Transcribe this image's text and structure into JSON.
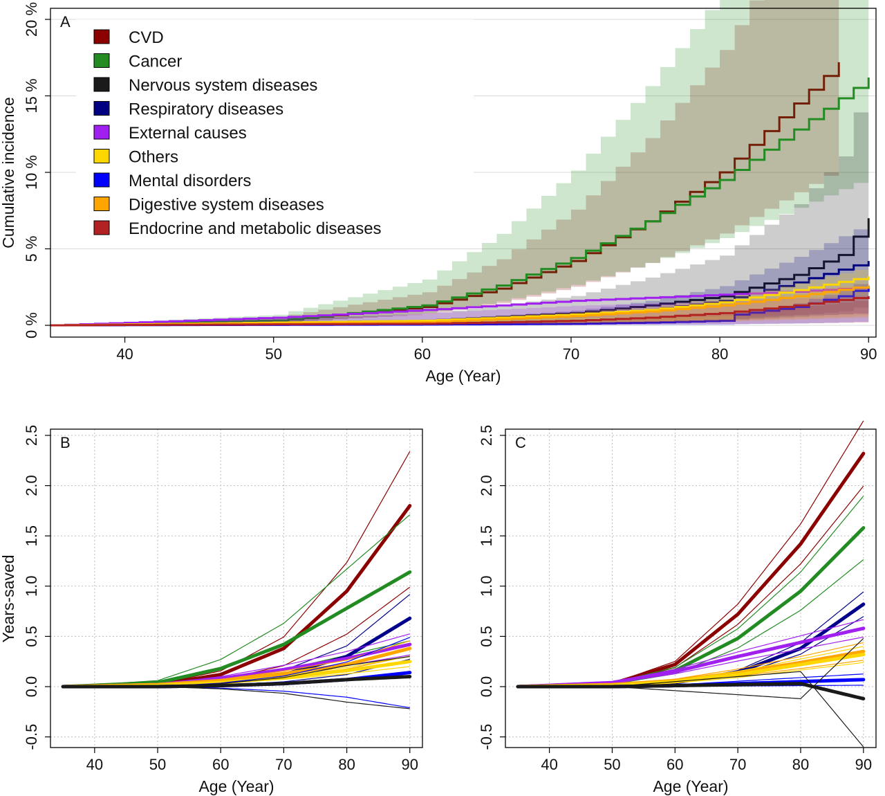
{
  "chart_data": [
    {
      "panel": "A",
      "type": "line",
      "xlabel": "Age (Year)",
      "ylabel": "Cumulative incidence",
      "xlim": [
        35,
        90
      ],
      "ylim": [
        0,
        20
      ],
      "x_ticks": [
        "40",
        "50",
        "60",
        "70",
        "80",
        "90"
      ],
      "y_ticks": [
        "0 %",
        "5 %",
        "10 %",
        "15 %",
        "20 %"
      ],
      "legend_position": "top-left",
      "grid": "horizontal",
      "series": [
        {
          "name": "CVD",
          "color": "#8B0000",
          "x": [
            35,
            50,
            60,
            65,
            70,
            75,
            80,
            85,
            88
          ],
          "y": [
            0,
            0.3,
            1.2,
            2.4,
            4.2,
            6.8,
            10.0,
            14.5,
            17.2
          ],
          "ci": [
            0.6,
            1.8
          ]
        },
        {
          "name": "Cancer",
          "color": "#228B22",
          "x": [
            35,
            50,
            60,
            65,
            70,
            75,
            80,
            85,
            90
          ],
          "y": [
            0,
            0.3,
            1.3,
            2.6,
            4.4,
            6.8,
            9.5,
            12.8,
            16.2
          ],
          "ci": [
            0.6,
            2.3
          ]
        },
        {
          "name": "Nervous system diseases",
          "color": "#1a1a1a",
          "x": [
            35,
            60,
            70,
            75,
            80,
            85,
            88,
            90
          ],
          "y": [
            0,
            0.3,
            0.8,
            1.3,
            1.9,
            3.3,
            4.6,
            7.0
          ],
          "ci": [
            0.2,
            2.4
          ]
        },
        {
          "name": "Respiratory diseases",
          "color": "#000080",
          "x": [
            35,
            60,
            70,
            75,
            80,
            85,
            90
          ],
          "y": [
            0,
            0.2,
            0.6,
            1.0,
            1.6,
            2.8,
            4.2
          ],
          "ci": [
            0.2,
            1.6
          ]
        },
        {
          "name": "External causes",
          "color": "#A020F0",
          "x": [
            35,
            50,
            60,
            70,
            75,
            80,
            85,
            90
          ],
          "y": [
            0,
            0.5,
            1.0,
            1.6,
            1.8,
            2.0,
            2.2,
            2.5
          ],
          "ci": [
            0.3,
            0.8
          ]
        },
        {
          "name": "Others",
          "color": "#FFD700",
          "x": [
            35,
            60,
            70,
            75,
            80,
            85,
            90
          ],
          "y": [
            0,
            0.3,
            0.7,
            1.0,
            1.5,
            2.3,
            3.2
          ],
          "ci": [
            0.2,
            1.2
          ]
        },
        {
          "name": "Mental disorders",
          "color": "#0000FF",
          "x": [
            35,
            60,
            70,
            76,
            80,
            81,
            85,
            88,
            90
          ],
          "y": [
            0,
            0.05,
            0.1,
            0.2,
            0.3,
            0.7,
            1.2,
            1.9,
            2.6
          ],
          "ci": [
            0.1,
            1.2
          ]
        },
        {
          "name": "Digestive system diseases",
          "color": "#FFA500",
          "x": [
            35,
            60,
            70,
            75,
            80,
            85,
            90
          ],
          "y": [
            0,
            0.2,
            0.6,
            0.9,
            1.3,
            1.9,
            2.6
          ],
          "ci": [
            0.2,
            1.1
          ]
        },
        {
          "name": "Endocrine and metabolic diseases",
          "color": "#B22222",
          "x": [
            35,
            60,
            70,
            75,
            80,
            85,
            90
          ],
          "y": [
            0,
            0.1,
            0.3,
            0.5,
            0.8,
            1.3,
            1.9
          ],
          "ci": [
            0.1,
            0.9
          ]
        }
      ]
    },
    {
      "panel": "B",
      "type": "line",
      "xlabel": "Age (Year)",
      "ylabel": "Years-saved",
      "xlim": [
        35,
        90
      ],
      "ylim": [
        -0.6,
        2.6
      ],
      "x_ticks": [
        "40",
        "50",
        "60",
        "70",
        "80",
        "90"
      ],
      "y_ticks": [
        "-0.5",
        "0.0",
        "0.5",
        "1.0",
        "1.5",
        "2.0",
        "2.5"
      ],
      "grid": "dotted",
      "series": [
        {
          "color": "#8B0000",
          "x": [
            35,
            50,
            60,
            70,
            80,
            90
          ],
          "y": [
            0,
            0.02,
            0.12,
            0.38,
            0.95,
            1.8
          ],
          "band": [
            0.55,
            1.3
          ]
        },
        {
          "color": "#228B22",
          "x": [
            35,
            50,
            60,
            70,
            80,
            90
          ],
          "y": [
            0,
            0.04,
            0.18,
            0.42,
            0.78,
            1.14
          ],
          "band": [
            0.4,
            1.5
          ]
        },
        {
          "color": "#00008B",
          "x": [
            35,
            50,
            60,
            70,
            80,
            90
          ],
          "y": [
            0,
            0.01,
            0.04,
            0.12,
            0.3,
            0.68
          ],
          "band": [
            0.4,
            1.35
          ]
        },
        {
          "color": "#A020F0",
          "x": [
            35,
            50,
            60,
            70,
            80,
            90
          ],
          "y": [
            0,
            0.02,
            0.08,
            0.17,
            0.28,
            0.42
          ],
          "band": [
            0.75,
            1.25
          ]
        },
        {
          "color": "#FFA500",
          "x": [
            35,
            50,
            60,
            70,
            80,
            90
          ],
          "y": [
            0,
            0.02,
            0.06,
            0.13,
            0.22,
            0.38
          ],
          "band": [
            0.8,
            1.2
          ]
        },
        {
          "color": "#FFD700",
          "x": [
            35,
            50,
            60,
            70,
            80,
            90
          ],
          "y": [
            0,
            0.01,
            0.04,
            0.09,
            0.16,
            0.25
          ],
          "band": [
            0.8,
            1.2
          ]
        },
        {
          "color": "#0000FF",
          "x": [
            35,
            50,
            60,
            70,
            80,
            90
          ],
          "y": [
            0,
            0.0,
            0.01,
            0.03,
            0.07,
            0.14
          ],
          "band": [
            -1.5,
            3.5
          ]
        },
        {
          "color": "#1a1a1a",
          "x": [
            35,
            50,
            60,
            70,
            80,
            90
          ],
          "y": [
            0,
            0.0,
            0.01,
            0.03,
            0.07,
            0.1
          ],
          "band": [
            -2.2,
            3.0
          ]
        }
      ]
    },
    {
      "panel": "C",
      "type": "line",
      "xlabel": "Age (Year)",
      "ylabel": "",
      "xlim": [
        35,
        90
      ],
      "ylim": [
        -0.6,
        2.6
      ],
      "x_ticks": [
        "40",
        "50",
        "60",
        "70",
        "80",
        "90"
      ],
      "y_ticks": [
        "-0.5",
        "0.0",
        "0.5",
        "1.0",
        "1.5",
        "2.0",
        "2.5"
      ],
      "grid": "dotted",
      "series": [
        {
          "color": "#8B0000",
          "x": [
            35,
            50,
            60,
            70,
            80,
            90
          ],
          "y": [
            0,
            0.03,
            0.22,
            0.72,
            1.42,
            2.32
          ],
          "band": [
            0.86,
            1.14
          ]
        },
        {
          "color": "#228B22",
          "x": [
            35,
            50,
            60,
            70,
            80,
            90
          ],
          "y": [
            0,
            0.03,
            0.16,
            0.48,
            0.95,
            1.58
          ],
          "band": [
            0.8,
            1.2
          ]
        },
        {
          "color": "#00008B",
          "x": [
            35,
            50,
            60,
            70,
            80,
            90
          ],
          "y": [
            0,
            0.01,
            0.04,
            0.14,
            0.38,
            0.82
          ],
          "band": [
            0.85,
            1.15
          ]
        },
        {
          "color": "#A020F0",
          "x": [
            35,
            50,
            60,
            70,
            80,
            90
          ],
          "y": [
            0,
            0.04,
            0.15,
            0.3,
            0.44,
            0.58
          ],
          "band": [
            0.85,
            1.15
          ]
        },
        {
          "color": "#FFA500",
          "x": [
            35,
            50,
            60,
            70,
            80,
            90
          ],
          "y": [
            0,
            0.02,
            0.06,
            0.14,
            0.24,
            0.35
          ],
          "band": [
            0.75,
            1.25
          ]
        },
        {
          "color": "#FFD700",
          "x": [
            35,
            50,
            60,
            70,
            80,
            90
          ],
          "y": [
            0,
            0.01,
            0.05,
            0.12,
            0.22,
            0.32
          ],
          "band": [
            0.75,
            1.25
          ]
        },
        {
          "color": "#0000FF",
          "x": [
            35,
            50,
            60,
            70,
            80,
            90
          ],
          "y": [
            0,
            0.0,
            0.01,
            0.03,
            0.05,
            0.07
          ],
          "band": [
            0.2,
            1.8
          ]
        },
        {
          "color": "#1a1a1a",
          "x": [
            35,
            50,
            60,
            70,
            80,
            90
          ],
          "y": [
            0,
            0.0,
            0.01,
            0.02,
            0.03,
            -0.12
          ],
          "band": [
            -4.0,
            5.0
          ]
        }
      ]
    }
  ]
}
